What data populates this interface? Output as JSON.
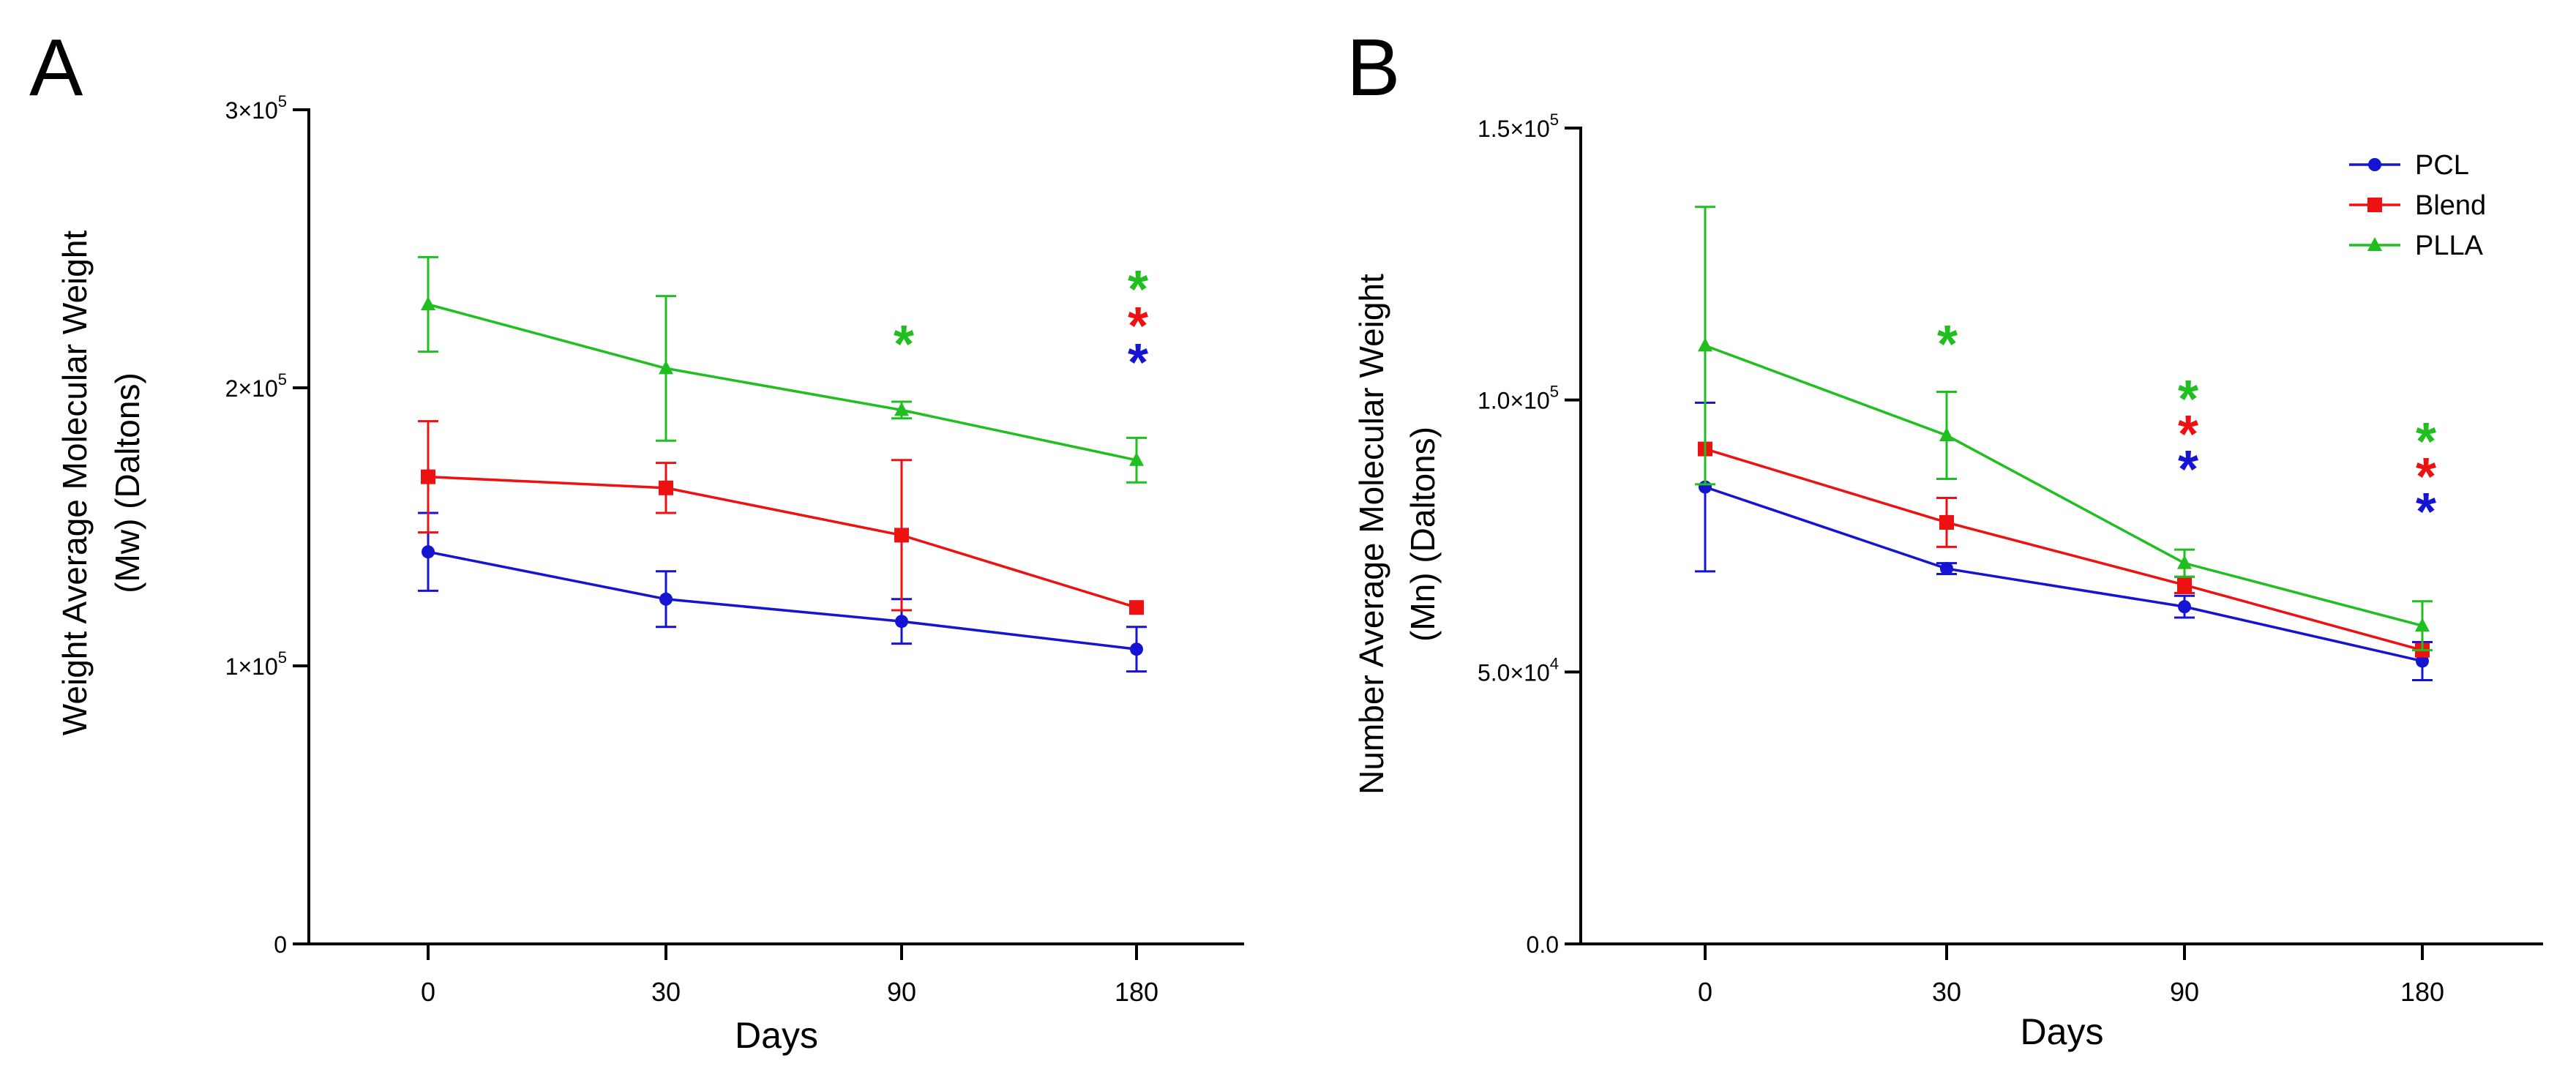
{
  "figure": {
    "panels": [
      {
        "id": "A",
        "label": "A"
      },
      {
        "id": "B",
        "label": "B"
      }
    ]
  },
  "colors": {
    "PCL": "#1414d2",
    "Blend": "#ee1111",
    "PLLA": "#1fbf1f",
    "axis": "#000000"
  },
  "chart_data": [
    {
      "panel": "A",
      "type": "line",
      "title": "",
      "xlabel": "Days",
      "ylabel_lines": [
        "Weight Average Molecular Weight",
        "(Mw) (Daltons)"
      ],
      "categories": [
        "0",
        "30",
        "90",
        "180"
      ],
      "ylim": [
        0,
        300000
      ],
      "yticks": [
        {
          "value": 0,
          "base": "0",
          "exp": ""
        },
        {
          "value": 100000,
          "base": "1×10",
          "exp": "5"
        },
        {
          "value": 200000,
          "base": "2×10",
          "exp": "5"
        },
        {
          "value": 300000,
          "base": "3×10",
          "exp": "5"
        }
      ],
      "series": [
        {
          "name": "PCL",
          "marker": "circle",
          "values": [
            141000,
            124000,
            116000,
            106000
          ],
          "errors": [
            14000,
            10000,
            8000,
            8000
          ]
        },
        {
          "name": "Blend",
          "marker": "square",
          "values": [
            168000,
            164000,
            147000,
            121000
          ],
          "errors": [
            20000,
            9000,
            27000,
            0
          ]
        },
        {
          "name": "PLLA",
          "marker": "triangle",
          "values": [
            230000,
            207000,
            192000,
            174000
          ],
          "errors": [
            17000,
            26000,
            3000,
            8000
          ]
        }
      ],
      "significance": [
        {
          "category": "90",
          "series": "PLLA",
          "symbol": "*"
        },
        {
          "category": "180",
          "series": "PLLA",
          "symbol": "*"
        },
        {
          "category": "180",
          "series": "Blend",
          "symbol": "*"
        },
        {
          "category": "180",
          "series": "PCL",
          "symbol": "*"
        }
      ],
      "legend": null
    },
    {
      "panel": "B",
      "type": "line",
      "title": "",
      "xlabel": "Days",
      "ylabel_lines": [
        "Number Average Molecular Weight",
        "(Mn) (Daltons)"
      ],
      "categories": [
        "0",
        "30",
        "90",
        "180"
      ],
      "ylim": [
        0,
        150000
      ],
      "yticks": [
        {
          "value": 0,
          "base": "0.0",
          "exp": ""
        },
        {
          "value": 50000,
          "base": "5.0×10",
          "exp": "4"
        },
        {
          "value": 100000,
          "base": "1.0×10",
          "exp": "5"
        },
        {
          "value": 150000,
          "base": "1.5×10",
          "exp": "5"
        }
      ],
      "series": [
        {
          "name": "PCL",
          "marker": "circle",
          "values": [
            84000,
            69000,
            62000,
            52000
          ],
          "errors": [
            15500,
            1000,
            2000,
            3500
          ]
        },
        {
          "name": "Blend",
          "marker": "square",
          "values": [
            91000,
            77500,
            66000,
            54000
          ],
          "errors": [
            0,
            4500,
            1500,
            0
          ]
        },
        {
          "name": "PLLA",
          "marker": "triangle",
          "values": [
            110000,
            93500,
            70000,
            58500
          ],
          "errors": [
            25500,
            8000,
            2500,
            4500
          ]
        }
      ],
      "significance": [
        {
          "category": "30",
          "series": "PLLA",
          "symbol": "*"
        },
        {
          "category": "90",
          "series": "PLLA",
          "symbol": "*"
        },
        {
          "category": "90",
          "series": "Blend",
          "symbol": "*"
        },
        {
          "category": "90",
          "series": "PCL",
          "symbol": "*"
        },
        {
          "category": "180",
          "series": "PLLA",
          "symbol": "*"
        },
        {
          "category": "180",
          "series": "Blend",
          "symbol": "*"
        },
        {
          "category": "180",
          "series": "PCL",
          "symbol": "*"
        }
      ],
      "legend": {
        "position": "top-right",
        "entries": [
          "PCL",
          "Blend",
          "PLLA"
        ]
      }
    }
  ]
}
